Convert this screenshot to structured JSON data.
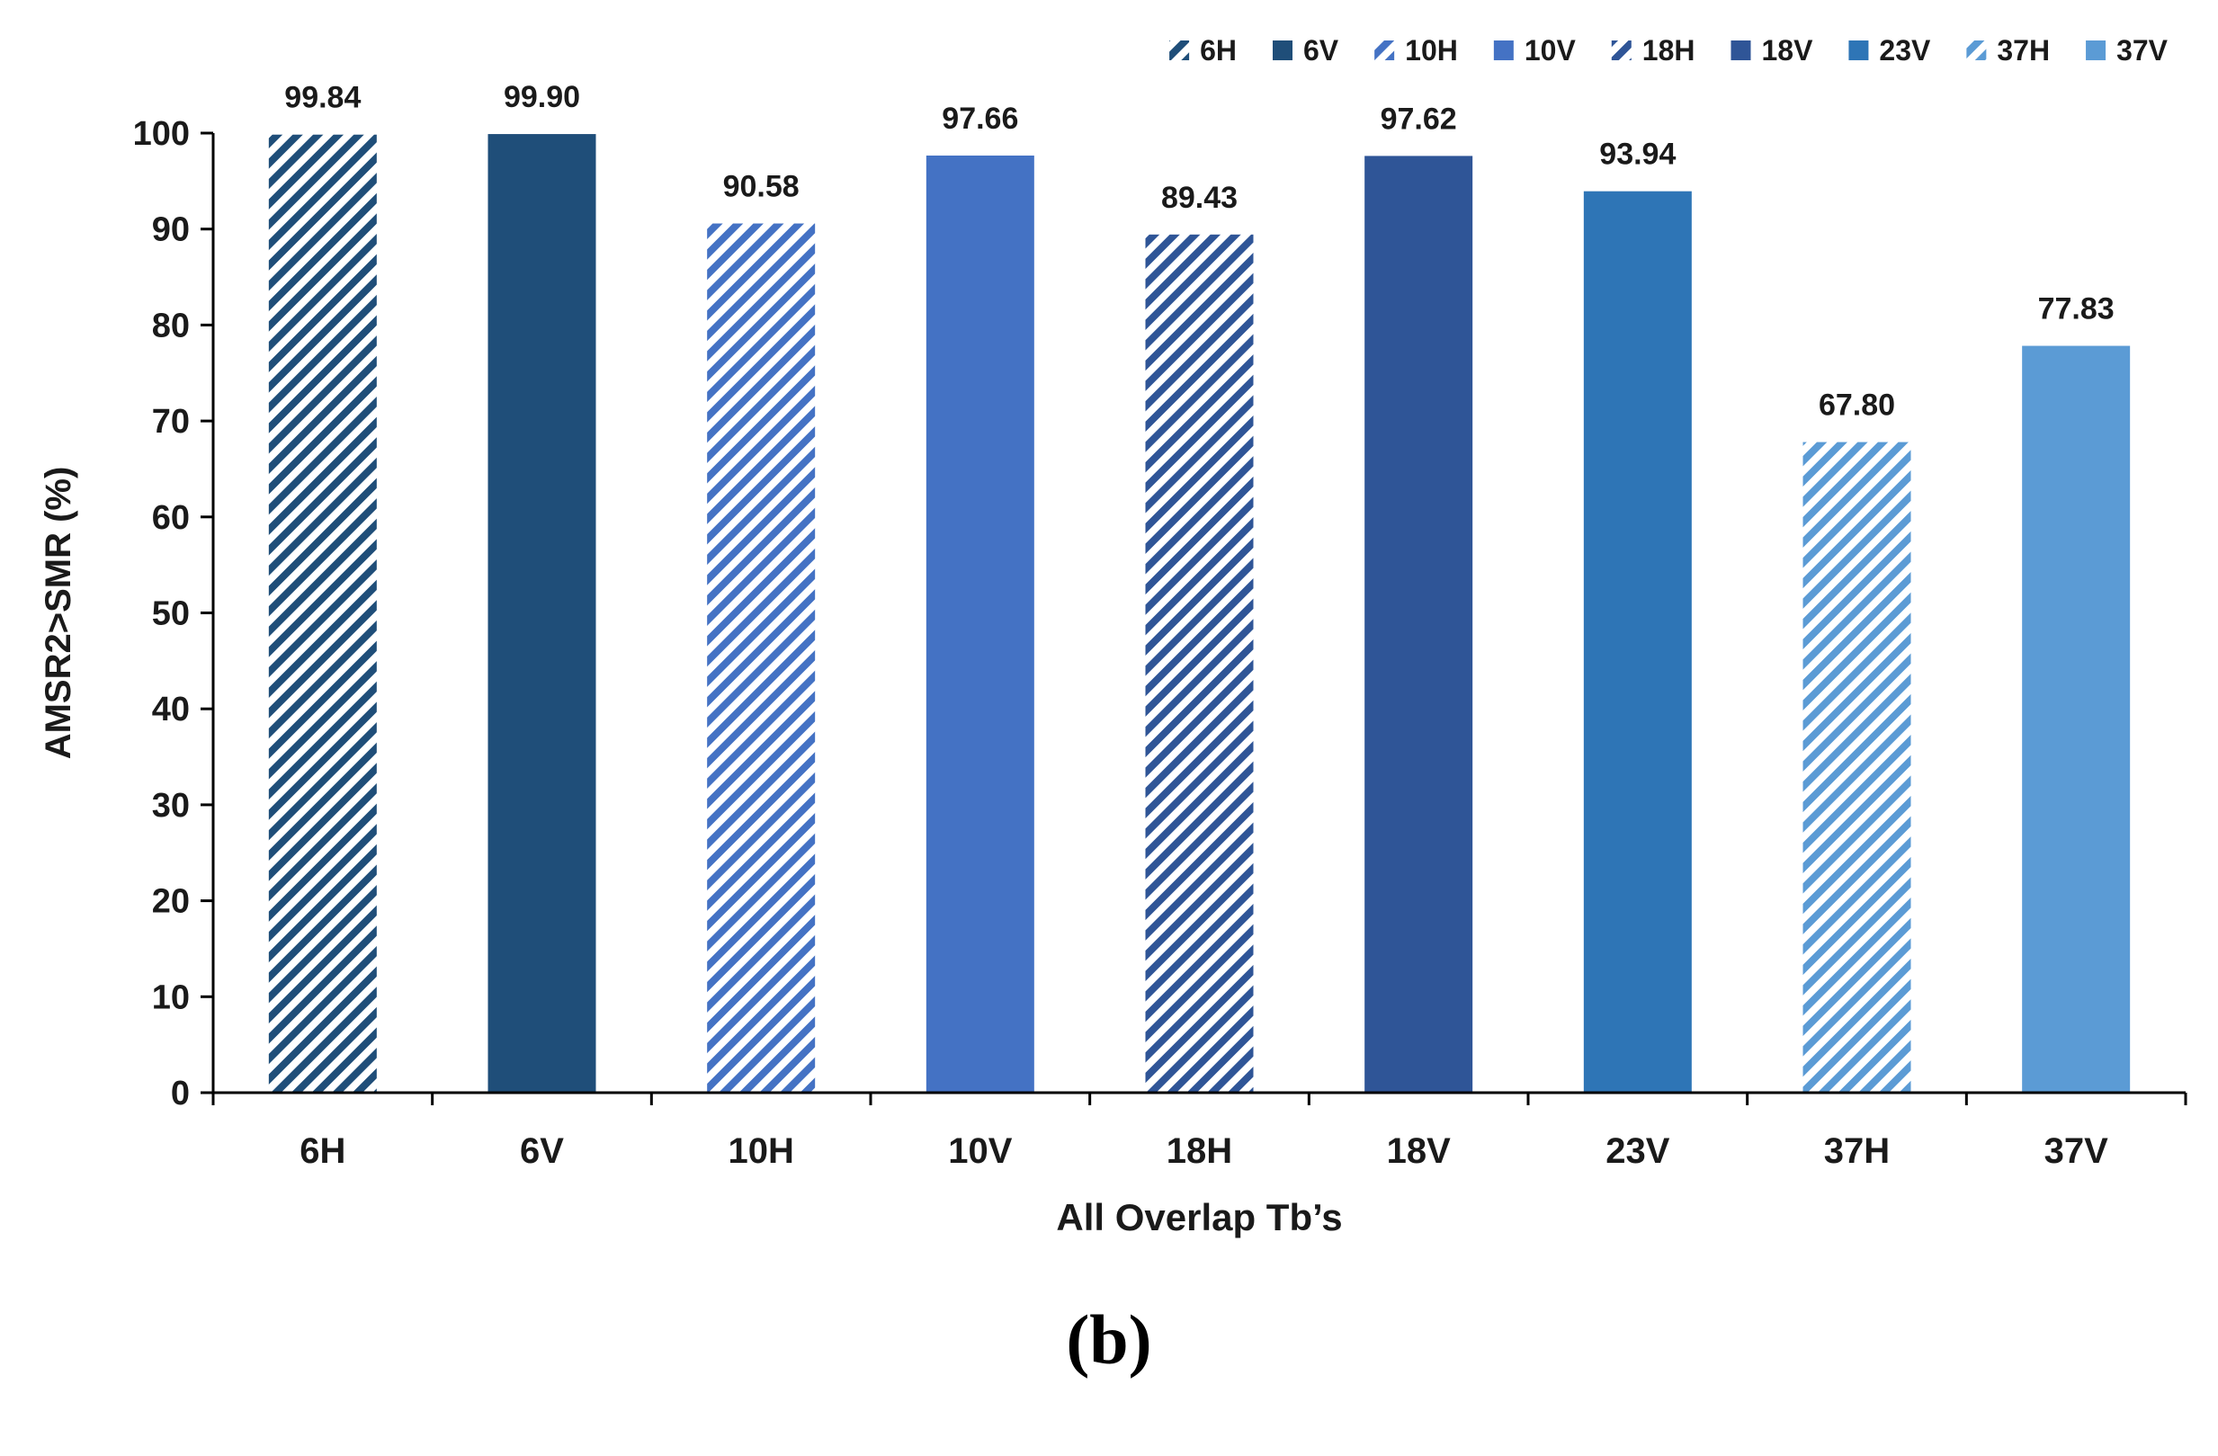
{
  "figure": {
    "panel_label": "(b)"
  },
  "colors": {
    "6H": "#1f4e79",
    "6V": "#1f4e79",
    "10H": "#4472c4",
    "10V": "#4472c4",
    "18H": "#2f5597",
    "18V": "#2f5597",
    "23V": "#2e75b6",
    "37H": "#5b9bd5",
    "37V": "#5b9bd5",
    "axis": "#000000",
    "text": "#1a1a1a"
  },
  "chart_data": {
    "type": "bar",
    "title": "",
    "xlabel": "All Overlap Tb’s",
    "ylabel": "AMSR2>SMR (%)",
    "ylim": [
      0,
      100
    ],
    "yticks": [
      "0",
      "10",
      "20",
      "30",
      "40",
      "50",
      "60",
      "70",
      "80",
      "90",
      "100"
    ],
    "categories": [
      "6H",
      "6V",
      "10H",
      "10V",
      "18H",
      "18V",
      "23V",
      "37H",
      "37V"
    ],
    "values": [
      99.84,
      99.9,
      90.58,
      97.66,
      89.43,
      97.62,
      93.94,
      67.8,
      77.83
    ],
    "value_labels": [
      "99.84",
      "99.90",
      "90.58",
      "97.66",
      "89.43",
      "97.62",
      "93.94",
      "67.80",
      "77.83"
    ],
    "patterns": [
      "hatch",
      "solid",
      "hatch",
      "solid",
      "hatch",
      "solid",
      "solid",
      "hatch",
      "solid"
    ],
    "legend": {
      "placement": "top-right",
      "entries": [
        "6H",
        "6V",
        "10H",
        "10V",
        "18H",
        "18V",
        "23V",
        "37H",
        "37V"
      ]
    },
    "grid": false
  }
}
